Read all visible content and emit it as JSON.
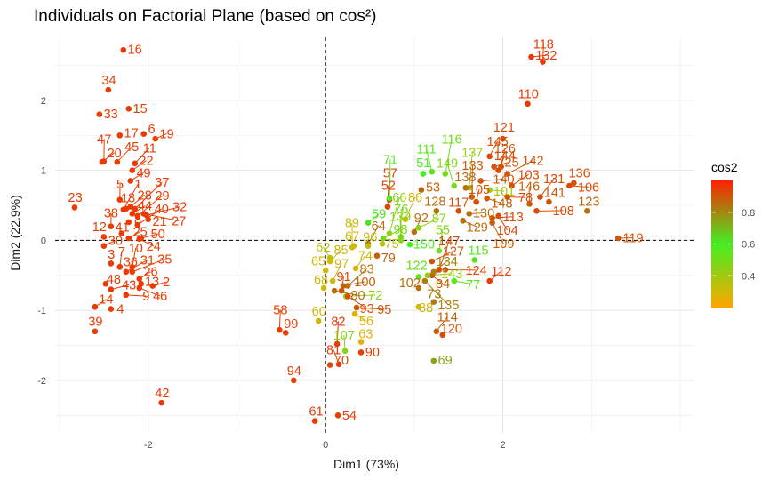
{
  "chart_data": {
    "type": "scatter",
    "title": "Individuals on Factorial Plane (based on cos²)",
    "xlabel": "Dim1 (73%)",
    "ylabel": "Dim2 (22.9%)",
    "xlim": [
      -3.05,
      4.15
    ],
    "ylim": [
      -2.75,
      2.9
    ],
    "xticks": [
      -2,
      0,
      2
    ],
    "yticks": [
      -2,
      -1,
      0,
      1,
      2
    ],
    "grid": true,
    "reference_lines": {
      "x": 0,
      "y": 0,
      "style": "dashed"
    },
    "legend": {
      "title": "cos2",
      "position": "right",
      "ticks": [
        0.4,
        0.6,
        0.8
      ]
    },
    "colors": {
      "low": "#FFA500",
      "mid": "#44EE22",
      "high": "#FF2200",
      "mid_value": 0.6
    },
    "points": [
      {
        "id": "1",
        "x": -2.28,
        "y": 0.44,
        "c": 0.95
      },
      {
        "id": "2",
        "x": -1.95,
        "y": -0.65,
        "c": 0.95
      },
      {
        "id": "3",
        "x": -2.42,
        "y": -0.33,
        "c": 0.95
      },
      {
        "id": "4",
        "x": -2.42,
        "y": -0.98,
        "c": 0.95
      },
      {
        "id": "5",
        "x": -2.32,
        "y": 0.58,
        "c": 0.95
      },
      {
        "id": "6",
        "x": -2.05,
        "y": 1.52,
        "c": 0.95
      },
      {
        "id": "7",
        "x": -2.32,
        "y": -0.38,
        "c": 0.95
      },
      {
        "id": "8",
        "x": -2.22,
        "y": 0.26,
        "c": 0.95
      },
      {
        "id": "9",
        "x": -2.25,
        "y": -0.78,
        "c": 0.95
      },
      {
        "id": "10",
        "x": -2.18,
        "y": -0.38,
        "c": 0.95
      },
      {
        "id": "11",
        "x": -2.15,
        "y": 1.1,
        "c": 0.95
      },
      {
        "id": "12",
        "x": -2.5,
        "y": 0.05,
        "c": 0.95
      },
      {
        "id": "13",
        "x": -2.08,
        "y": -0.62,
        "c": 0.95
      },
      {
        "id": "14",
        "x": -2.6,
        "y": -0.95,
        "c": 0.95
      },
      {
        "id": "15",
        "x": -2.22,
        "y": 1.88,
        "c": 0.95
      },
      {
        "id": "16",
        "x": -2.28,
        "y": 2.72,
        "c": 0.95
      },
      {
        "id": "17",
        "x": -2.32,
        "y": 1.5,
        "c": 0.95
      },
      {
        "id": "18",
        "x": -2.25,
        "y": 0.45,
        "c": 0.95
      },
      {
        "id": "19",
        "x": -1.92,
        "y": 1.45,
        "c": 0.95
      },
      {
        "id": "20",
        "x": -2.52,
        "y": 1.12,
        "c": 0.95
      },
      {
        "id": "21",
        "x": -2.0,
        "y": 0.3,
        "c": 0.95
      },
      {
        "id": "22",
        "x": -2.18,
        "y": 1.0,
        "c": 0.95
      },
      {
        "id": "23",
        "x": -2.83,
        "y": 0.47,
        "c": 0.95
      },
      {
        "id": "24",
        "x": -2.1,
        "y": 0.02,
        "c": 0.95
      },
      {
        "id": "25",
        "x": -2.22,
        "y": 0.03,
        "c": 0.95
      },
      {
        "id": "26",
        "x": -2.1,
        "y": -0.55,
        "c": 0.95
      },
      {
        "id": "27",
        "x": -2.05,
        "y": 0.38,
        "c": 0.95
      },
      {
        "id": "28",
        "x": -2.2,
        "y": 0.48,
        "c": 0.95
      },
      {
        "id": "29",
        "x": -2.12,
        "y": 0.35,
        "c": 0.95
      },
      {
        "id": "30",
        "x": -2.5,
        "y": -0.08,
        "c": 0.95
      },
      {
        "id": "31",
        "x": -2.25,
        "y": -0.45,
        "c": 0.95
      },
      {
        "id": "32",
        "x": -2.02,
        "y": 0.36,
        "c": 0.95
      },
      {
        "id": "33",
        "x": -2.55,
        "y": 1.8,
        "c": 0.95
      },
      {
        "id": "34",
        "x": -2.45,
        "y": 2.15,
        "c": 0.95
      },
      {
        "id": "35",
        "x": -2.18,
        "y": -0.45,
        "c": 0.95
      },
      {
        "id": "36",
        "x": -2.32,
        "y": -0.38,
        "c": 0.95
      },
      {
        "id": "37",
        "x": -2.15,
        "y": 0.45,
        "c": 0.95
      },
      {
        "id": "38",
        "x": -2.42,
        "y": 0.2,
        "c": 0.95
      },
      {
        "id": "39",
        "x": -2.6,
        "y": -1.3,
        "c": 0.95
      },
      {
        "id": "40",
        "x": -2.12,
        "y": 0.22,
        "c": 0.95
      },
      {
        "id": "41",
        "x": -2.3,
        "y": 0.1,
        "c": 0.95
      },
      {
        "id": "42",
        "x": -1.85,
        "y": -2.32,
        "c": 0.95
      },
      {
        "id": "43",
        "x": -2.42,
        "y": -0.7,
        "c": 0.95
      },
      {
        "id": "44",
        "x": -2.18,
        "y": 0.38,
        "c": 0.95
      },
      {
        "id": "45",
        "x": -2.35,
        "y": 1.12,
        "c": 0.95
      },
      {
        "id": "46",
        "x": -2.1,
        "y": -0.68,
        "c": 0.95
      },
      {
        "id": "47",
        "x": -2.5,
        "y": 1.13,
        "c": 0.95
      },
      {
        "id": "48",
        "x": -2.48,
        "y": -0.62,
        "c": 0.95
      },
      {
        "id": "49",
        "x": -2.2,
        "y": 0.85,
        "c": 0.95
      },
      {
        "id": "50",
        "x": -2.08,
        "y": 0.03,
        "c": 0.95
      },
      {
        "id": "51",
        "x": 1.1,
        "y": 0.95,
        "c": 0.6
      },
      {
        "id": "52",
        "x": 0.7,
        "y": 0.48,
        "c": 0.93
      },
      {
        "id": "53",
        "x": 1.08,
        "y": 0.72,
        "c": 0.87
      },
      {
        "id": "54",
        "x": 0.14,
        "y": -2.5,
        "c": 0.95
      },
      {
        "id": "55",
        "x": 1.28,
        "y": -0.15,
        "c": 0.48
      },
      {
        "id": "56",
        "x": 0.33,
        "y": -1.05,
        "c": 0.27
      },
      {
        "id": "57",
        "x": 0.72,
        "y": 0.58,
        "c": 0.92
      },
      {
        "id": "58",
        "x": -0.52,
        "y": -1.28,
        "c": 0.95
      },
      {
        "id": "59",
        "x": 0.48,
        "y": 0.25,
        "c": 0.62
      },
      {
        "id": "60",
        "x": -0.08,
        "y": -1.15,
        "c": 0.3
      },
      {
        "id": "61",
        "x": -0.12,
        "y": -2.58,
        "c": 0.95
      },
      {
        "id": "62",
        "x": 0.05,
        "y": -0.25,
        "c": 0.35
      },
      {
        "id": "63",
        "x": 0.4,
        "y": -1.45,
        "c": 0.27
      },
      {
        "id": "64",
        "x": 0.48,
        "y": -0.05,
        "c": 0.85
      },
      {
        "id": "65",
        "x": 0.0,
        "y": -0.43,
        "c": 0.3
      },
      {
        "id": "66",
        "x": 0.72,
        "y": 0.1,
        "c": 0.44
      },
      {
        "id": "67",
        "x": 0.32,
        "y": -0.08,
        "c": 0.3
      },
      {
        "id": "68",
        "x": -0.02,
        "y": -0.68,
        "c": 0.3
      },
      {
        "id": "69",
        "x": 1.22,
        "y": -1.72,
        "c": 0.75
      },
      {
        "id": "70",
        "x": 0.05,
        "y": -1.78,
        "c": 0.92
      },
      {
        "id": "71",
        "x": 0.72,
        "y": 0.6,
        "c": 0.55
      },
      {
        "id": "72",
        "x": 0.23,
        "y": -0.8,
        "c": 0.45
      },
      {
        "id": "73",
        "x": 1.22,
        "y": -0.88,
        "c": 0.82
      },
      {
        "id": "74",
        "x": 0.34,
        "y": -0.4,
        "c": 0.3
      },
      {
        "id": "75",
        "x": 0.64,
        "y": -0.05,
        "c": 0.35
      },
      {
        "id": "76",
        "x": 0.85,
        "y": 0.05,
        "c": 0.5
      },
      {
        "id": "77",
        "x": 1.45,
        "y": -0.58,
        "c": 0.55
      },
      {
        "id": "78",
        "x": 2.05,
        "y": 0.62,
        "c": 0.92
      },
      {
        "id": "79",
        "x": 0.58,
        "y": -0.22,
        "c": 0.88
      },
      {
        "id": "80",
        "x": 0.1,
        "y": -0.72,
        "c": 0.85
      },
      {
        "id": "81",
        "x": 0.15,
        "y": -1.77,
        "c": 0.95
      },
      {
        "id": "82",
        "x": 0.13,
        "y": -1.48,
        "c": 0.95
      },
      {
        "id": "83",
        "x": 0.25,
        "y": -0.65,
        "c": 0.85
      },
      {
        "id": "84",
        "x": 1.2,
        "y": -0.5,
        "c": 0.88
      },
      {
        "id": "85",
        "x": 0.05,
        "y": -0.3,
        "c": 0.3
      },
      {
        "id": "86",
        "x": 0.9,
        "y": 0.3,
        "c": 0.3
      },
      {
        "id": "87",
        "x": 1.05,
        "y": 0.18,
        "c": 0.45
      },
      {
        "id": "88",
        "x": 1.05,
        "y": -0.95,
        "c": 0.3
      },
      {
        "id": "89",
        "x": 0.3,
        "y": -0.1,
        "c": 0.3
      },
      {
        "id": "90",
        "x": 0.4,
        "y": -1.6,
        "c": 0.95
      },
      {
        "id": "91",
        "x": 0.18,
        "y": -0.72,
        "c": 0.92
      },
      {
        "id": "92",
        "x": 1.0,
        "y": 0.12,
        "c": 0.85
      },
      {
        "id": "93",
        "x": 0.25,
        "y": -0.8,
        "c": 0.92
      },
      {
        "id": "94",
        "x": -0.36,
        "y": -2.0,
        "c": 0.95
      },
      {
        "id": "95",
        "x": 0.35,
        "y": -0.96,
        "c": 0.9
      },
      {
        "id": "96",
        "x": 0.48,
        "y": -0.08,
        "c": 0.35
      },
      {
        "id": "97",
        "x": 0.08,
        "y": -0.58,
        "c": 0.3
      },
      {
        "id": "98",
        "x": 0.65,
        "y": 0.03,
        "c": 0.48
      },
      {
        "id": "99",
        "x": -0.45,
        "y": -1.32,
        "c": 0.95
      },
      {
        "id": "100",
        "x": 0.2,
        "y": -0.65,
        "c": 0.88
      },
      {
        "id": "101",
        "x": 1.85,
        "y": 0.72,
        "c": 0.38
      },
      {
        "id": "102",
        "x": 1.05,
        "y": -0.68,
        "c": 0.85
      },
      {
        "id": "103",
        "x": 2.1,
        "y": 0.78,
        "c": 0.92
      },
      {
        "id": "104",
        "x": 1.95,
        "y": 0.35,
        "c": 0.92
      },
      {
        "id": "105",
        "x": 1.7,
        "y": 0.55,
        "c": 0.92
      },
      {
        "id": "106",
        "x": 2.75,
        "y": 0.78,
        "c": 0.92
      },
      {
        "id": "107",
        "x": 0.22,
        "y": -1.58,
        "c": 0.45
      },
      {
        "id": "108",
        "x": 2.38,
        "y": 0.42,
        "c": 0.92
      },
      {
        "id": "109",
        "x": 1.88,
        "y": 0.25,
        "c": 0.88
      },
      {
        "id": "110",
        "x": 2.28,
        "y": 1.95,
        "c": 0.95
      },
      {
        "id": "111",
        "x": 1.2,
        "y": 0.98,
        "c": 0.55
      },
      {
        "id": "112",
        "x": 1.85,
        "y": -0.58,
        "c": 0.95
      },
      {
        "id": "113",
        "x": 1.88,
        "y": 0.32,
        "c": 0.92
      },
      {
        "id": "114",
        "x": 1.25,
        "y": -1.3,
        "c": 0.88
      },
      {
        "id": "115",
        "x": 1.68,
        "y": -0.28,
        "c": 0.55
      },
      {
        "id": "116",
        "x": 1.35,
        "y": 0.95,
        "c": 0.5
      },
      {
        "id": "117",
        "x": 1.5,
        "y": 0.42,
        "c": 0.92
      },
      {
        "id": "118",
        "x": 2.45,
        "y": 2.55,
        "c": 0.95
      },
      {
        "id": "119",
        "x": 3.3,
        "y": 0.03,
        "c": 0.9
      },
      {
        "id": "120",
        "x": 1.32,
        "y": -1.35,
        "c": 0.92
      },
      {
        "id": "121",
        "x": 2.0,
        "y": 1.45,
        "c": 0.92
      },
      {
        "id": "122",
        "x": 1.05,
        "y": -0.52,
        "c": 0.52
      },
      {
        "id": "123",
        "x": 2.95,
        "y": 0.42,
        "c": 0.85
      },
      {
        "id": "124",
        "x": 1.35,
        "y": -0.42,
        "c": 0.92
      },
      {
        "id": "125",
        "x": 1.9,
        "y": 1.05,
        "c": 0.9
      },
      {
        "id": "126",
        "x": 1.98,
        "y": 1.05,
        "c": 0.9
      },
      {
        "id": "127",
        "x": 1.2,
        "y": -0.3,
        "c": 0.9
      },
      {
        "id": "128",
        "x": 1.25,
        "y": 0.42,
        "c": 0.85
      },
      {
        "id": "129",
        "x": 1.55,
        "y": 0.28,
        "c": 0.85
      },
      {
        "id": "130",
        "x": 1.62,
        "y": 0.38,
        "c": 0.85
      },
      {
        "id": "131",
        "x": 2.42,
        "y": 0.62,
        "c": 0.92
      },
      {
        "id": "132",
        "x": 2.32,
        "y": 2.62,
        "c": 0.95
      },
      {
        "id": "133",
        "x": 1.65,
        "y": 0.62,
        "c": 0.88
      },
      {
        "id": "134",
        "x": 1.22,
        "y": -0.45,
        "c": 0.82
      },
      {
        "id": "135",
        "x": 1.12,
        "y": -0.58,
        "c": 0.82
      },
      {
        "id": "136",
        "x": 2.8,
        "y": 0.82,
        "c": 0.92
      },
      {
        "id": "137",
        "x": 1.62,
        "y": 0.75,
        "c": 0.42
      },
      {
        "id": "138",
        "x": 1.58,
        "y": 0.75,
        "c": 0.85
      },
      {
        "id": "139",
        "x": 0.85,
        "y": 0.0,
        "c": 0.45
      },
      {
        "id": "140",
        "x": 1.75,
        "y": 0.85,
        "c": 0.9
      },
      {
        "id": "141",
        "x": 2.52,
        "y": 0.55,
        "c": 0.9
      },
      {
        "id": "142",
        "x": 2.05,
        "y": 0.95,
        "c": 0.9
      },
      {
        "id": "143",
        "x": 1.15,
        "y": -0.5,
        "c": 0.42
      },
      {
        "id": "144",
        "x": 1.95,
        "y": 1.0,
        "c": 0.92
      },
      {
        "id": "145",
        "x": 1.85,
        "y": 1.2,
        "c": 0.92
      },
      {
        "id": "146",
        "x": 2.3,
        "y": 0.52,
        "c": 0.88
      },
      {
        "id": "147",
        "x": 1.28,
        "y": -0.42,
        "c": 0.92
      },
      {
        "id": "148",
        "x": 1.82,
        "y": 0.6,
        "c": 0.88
      },
      {
        "id": "149",
        "x": 1.45,
        "y": 0.78,
        "c": 0.48
      },
      {
        "id": "150",
        "x": 0.95,
        "y": -0.06,
        "c": 0.58
      }
    ]
  }
}
